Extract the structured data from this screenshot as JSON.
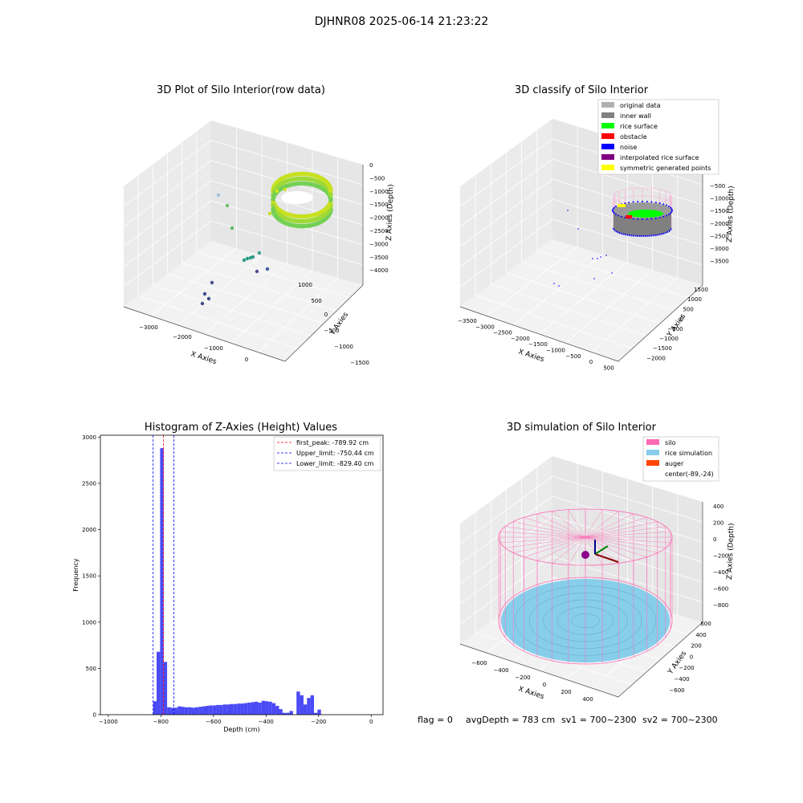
{
  "figure": {
    "suptitle": "DJHNR08 2025-06-14 21:23:22",
    "footer": {
      "flag": "flag = 0",
      "avg_depth": "avgDepth = 783 cm",
      "sv1": "sv1 = 700~2300",
      "sv2": "sv2 = 700~2300"
    }
  },
  "colors": {
    "original_data": "#b0b0b0",
    "inner_wall": "#808080",
    "rice_surface": "#00ff00",
    "obstacle": "#ff0000",
    "noise": "#0000ff",
    "interpolated_rice_surface": "#800080",
    "symmetric_generated_points": "#ffff00",
    "silo": "#ff69b4",
    "rice_simulation": "#87ceeb",
    "auger": "#ff4500",
    "hist_bars": "#4a4af5",
    "first_peak": "#ff0000",
    "limits": "#0000ff"
  },
  "chart_data": [
    {
      "type": "scatter",
      "subtype": "3d",
      "title": "3D Plot of Silo Interior(row data)",
      "xlabel": "X Axies",
      "ylabel": "Y Axies",
      "zlabel": "Z Axies (Depth)",
      "x_ticks": [
        "−3000",
        "−2000",
        "−1000",
        "0"
      ],
      "y_ticks": [
        "1000",
        "500",
        "0",
        "−500",
        "−1000",
        "−1500"
      ],
      "z_ticks": [
        "0",
        "−500",
        "−1000",
        "−1500",
        "−2000",
        "−2500",
        "−3000",
        "−3500",
        "−4000"
      ],
      "colormap": "viridis",
      "grid": true
    },
    {
      "type": "scatter",
      "subtype": "3d",
      "title": "3D classify of Silo Interior",
      "xlabel": "X Axies",
      "ylabel": "Y Axies",
      "zlabel": "Z Axies (Depth)",
      "x_ticks": [
        "−3500",
        "−3000",
        "−2500",
        "−2000",
        "−1500",
        "−1000",
        "−500",
        "0",
        "500"
      ],
      "y_ticks": [
        "1500",
        "1000",
        "500",
        "0",
        "−500",
        "−1000",
        "−1500",
        "−2000"
      ],
      "z_ticks": [
        "−500",
        "−1000",
        "−1500",
        "−2000",
        "−2500",
        "−3000",
        "−3500"
      ],
      "legend": [
        "original data",
        "inner wall",
        "rice surface",
        "obstacle",
        "noise",
        "interpolated rice surface",
        "symmetric generated points"
      ],
      "legend_placement": "top-right",
      "grid": true
    },
    {
      "type": "bar",
      "subtype": "histogram",
      "title": "Histogram of Z-Axies (Height) Values",
      "xlabel": "Depth (cm)",
      "ylabel": "Frequency",
      "xlim": [
        -1030,
        45
      ],
      "ylim": [
        0,
        3020
      ],
      "x_ticks": [
        -1000,
        -800,
        -600,
        -400,
        -200,
        0
      ],
      "x_tick_labels": [
        "−1000",
        "−800",
        "−600",
        "−400",
        "−200",
        "0"
      ],
      "y_ticks": [
        0,
        500,
        1000,
        1500,
        2000,
        2500,
        3000
      ],
      "bin_width": 13.33,
      "bins": [
        [
          -829.4,
          145
        ],
        [
          -816.1,
          680
        ],
        [
          -802.8,
          2880
        ],
        [
          -789.5,
          570
        ],
        [
          -776.2,
          80
        ],
        [
          -762.9,
          75
        ],
        [
          -749.6,
          75
        ],
        [
          -736.3,
          90
        ],
        [
          -723.0,
          85
        ],
        [
          -709.7,
          80
        ],
        [
          -696.4,
          80
        ],
        [
          -683.1,
          75
        ],
        [
          -669.8,
          80
        ],
        [
          -656.5,
          85
        ],
        [
          -643.2,
          90
        ],
        [
          -629.9,
          95
        ],
        [
          -616.6,
          100
        ],
        [
          -603.3,
          100
        ],
        [
          -590.0,
          105
        ],
        [
          -576.7,
          105
        ],
        [
          -563.4,
          110
        ],
        [
          -550.1,
          110
        ],
        [
          -536.8,
          115
        ],
        [
          -523.5,
          115
        ],
        [
          -510.2,
          120
        ],
        [
          -496.9,
          120
        ],
        [
          -483.6,
          125
        ],
        [
          -470.3,
          130
        ],
        [
          -457.0,
          135
        ],
        [
          -443.7,
          140
        ],
        [
          -430.4,
          130
        ],
        [
          -417.1,
          150
        ],
        [
          -403.8,
          145
        ],
        [
          -390.5,
          140
        ],
        [
          -377.2,
          125
        ],
        [
          -363.9,
          95
        ],
        [
          -350.6,
          60
        ],
        [
          -337.3,
          20
        ],
        [
          -324.0,
          20
        ],
        [
          -310.7,
          40
        ],
        [
          -297.4,
          0
        ],
        [
          -284.1,
          250
        ],
        [
          -270.8,
          210
        ],
        [
          -257.5,
          110
        ],
        [
          -244.2,
          180
        ],
        [
          -230.9,
          210
        ],
        [
          -217.6,
          20
        ],
        [
          -204.3,
          55
        ]
      ],
      "bins_note_origin": "",
      "lines": [
        {
          "label": "first_peak: -789.92 cm",
          "x": -789.92,
          "style": "dashed",
          "color": "#ff0000"
        },
        {
          "label": "Upper_limit: -750.44 cm",
          "x": -750.44,
          "style": "dashed",
          "color": "#0000ff"
        },
        {
          "label": "Lower_limit: -829.40 cm",
          "x": -829.4,
          "style": "dashed",
          "color": "#0000ff"
        }
      ],
      "legend_placement": "top-right"
    },
    {
      "type": "scatter",
      "subtype": "3d",
      "title": "3D simulation of Silo Interior",
      "xlabel": "X Axies",
      "ylabel": "Y Axies",
      "zlabel": "Z Axies (Depth)",
      "x_ticks": [
        "−600",
        "−400",
        "−200",
        "0",
        "200",
        "400"
      ],
      "y_ticks": [
        "600",
        "400",
        "200",
        "0",
        "−200",
        "−400",
        "−600"
      ],
      "z_ticks": [
        "400",
        "200",
        "0",
        "−200",
        "−400",
        "−600",
        "−800"
      ],
      "legend": [
        "silo",
        "rice simulation",
        "auger",
        "center(-89,-24)"
      ],
      "legend_placement": "top-right",
      "grid": true
    }
  ]
}
